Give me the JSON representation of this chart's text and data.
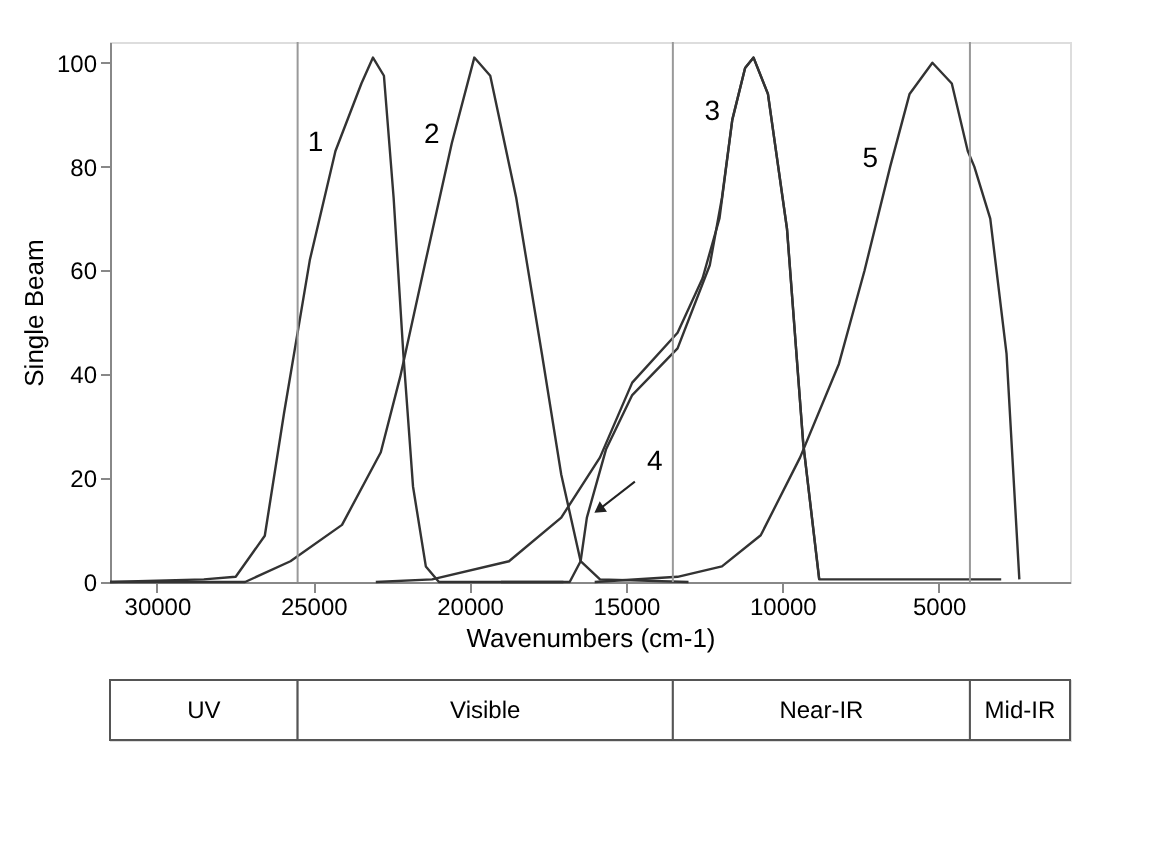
{
  "chart_data": {
    "type": "line",
    "xlabel": "Wavenumbers (cm-1)",
    "ylabel": "Single Beam",
    "xlim": [
      31500,
      800
    ],
    "xticks": [
      30000,
      25000,
      20000,
      15000,
      10000,
      5000
    ],
    "ylim": [
      0,
      104
    ],
    "yticks": [
      0,
      20,
      40,
      60,
      80,
      100
    ],
    "grid": false,
    "legend": false,
    "marker": "none",
    "line_style": "solid",
    "series": [
      {
        "color": "#333333",
        "x": [
          31500,
          28500,
          27480,
          26550,
          25935,
          25110,
          24290,
          23460,
          23090,
          22740,
          22430,
          22120,
          21810,
          21400,
          20980,
          17000
        ],
        "values": [
          0,
          0.5,
          1,
          8.9,
          32.5,
          62,
          83,
          96,
          101,
          97.5,
          74,
          44,
          18.4,
          3,
          0,
          0
        ]
      },
      {
        "color": "#333333",
        "x": [
          31500,
          27180,
          25730,
          24080,
          22840,
          22220,
          21400,
          20570,
          19850,
          19340,
          18510,
          17690,
          17070,
          16450,
          15830,
          13000
        ],
        "values": [
          0,
          0,
          4,
          11,
          25,
          39.5,
          62,
          84.5,
          101,
          97.5,
          74,
          44,
          20.7,
          4,
          0.5,
          0
        ]
      },
      {
        "color": "#333333",
        "x": [
          23000,
          21200,
          18740,
          17070,
          15830,
          14800,
          13350,
          12550,
          12010,
          11600,
          11190,
          10920,
          10460,
          9850,
          9330,
          8820,
          3000
        ],
        "values": [
          0,
          0.5,
          4,
          12.4,
          24,
          38.4,
          48,
          58.5,
          70,
          89,
          99,
          101,
          94,
          68,
          26.6,
          0.5,
          0.5
        ]
      },
      {
        "color": "#333333",
        "x": [
          19000,
          16800,
          16450,
          16250,
          15640,
          14800,
          13350,
          12320,
          11930,
          11600,
          11190,
          10920,
          10460,
          9850,
          9330,
          8820
        ],
        "values": [
          0,
          0,
          4,
          12.4,
          25.5,
          36,
          45,
          61,
          74,
          89,
          99,
          101,
          94,
          68,
          26.6,
          0.5
        ]
      },
      {
        "color": "#333333",
        "x": [
          16000,
          13350,
          11930,
          10690,
          9430,
          8190,
          7370,
          6550,
          5930,
          5200,
          4580,
          4070,
          3860,
          3350,
          2830,
          2420
        ],
        "values": [
          0,
          1,
          3,
          9,
          24,
          42,
          60,
          80,
          94,
          100,
          96,
          83,
          80,
          70,
          44,
          0.5
        ]
      }
    ],
    "annotations": [
      {
        "text": "1",
        "x": 24290,
        "y": 83
      },
      {
        "text": "2",
        "x": 20570,
        "y": 84.5
      },
      {
        "text": "3",
        "x": 11600,
        "y": 89
      },
      {
        "text": "4",
        "x": 16250,
        "y": 12.4
      },
      {
        "text": "5",
        "x": 6550,
        "y": 80
      },
      "UV",
      "Visible",
      "Near-IR",
      "Mid-IR"
    ],
    "ref_lines": [
      {
        "axis": "x",
        "value": 25500,
        "color": "#999999"
      },
      {
        "axis": "x",
        "value": 13500,
        "color": "#999999"
      },
      {
        "axis": "x",
        "value": 4000,
        "color": "#999999"
      }
    ]
  }
}
